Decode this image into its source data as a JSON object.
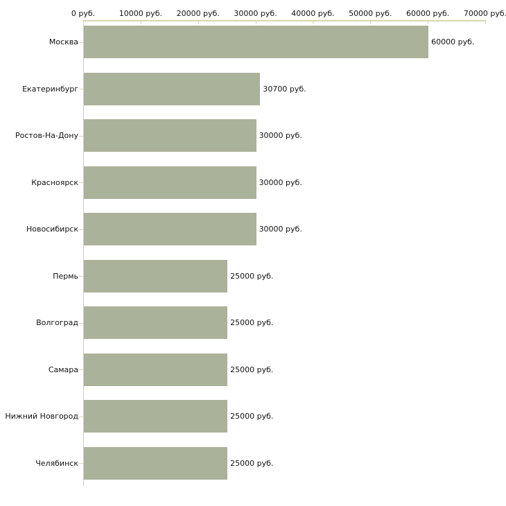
{
  "chart_data": {
    "type": "bar",
    "orientation": "horizontal",
    "categories": [
      "Москва",
      "Екатеринбург",
      "Ростов-На-Дону",
      "Красноярск",
      "Новосибирск",
      "Пермь",
      "Волгоград",
      "Самара",
      "Нижний Новгород",
      "Челябинск"
    ],
    "values": [
      60000,
      30700,
      30000,
      30000,
      30000,
      25000,
      25000,
      25000,
      25000,
      25000
    ],
    "value_labels": [
      "60000 руб.",
      "30700 руб.",
      "30000 руб.",
      "30000 руб.",
      "30000 руб.",
      "25000 руб.",
      "25000 руб.",
      "25000 руб.",
      "25000 руб.",
      "25000 руб."
    ],
    "x_ticks": [
      {
        "value": 0,
        "label": "0 руб."
      },
      {
        "value": 10000,
        "label": "10000 руб."
      },
      {
        "value": 20000,
        "label": "20000 руб."
      },
      {
        "value": 30000,
        "label": "30000 руб."
      },
      {
        "value": 40000,
        "label": "40000 руб."
      },
      {
        "value": 50000,
        "label": "50000 руб."
      },
      {
        "value": 60000,
        "label": "60000 руб."
      },
      {
        "value": 70000,
        "label": "70000 руб."
      }
    ],
    "xlim": [
      0,
      70000
    ],
    "unit": "руб.",
    "grid": false,
    "legend": null,
    "colors": {
      "bar": "#abb29a",
      "axis": "#d6d6ae",
      "category_tick": "#c9c9a2",
      "baseline": "#cccccc",
      "text": "#111111",
      "background": "#ffffff"
    }
  }
}
